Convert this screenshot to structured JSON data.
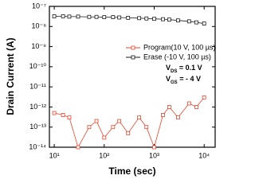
{
  "chart_data": {
    "type": "line",
    "xlabel": "Time (sec)",
    "ylabel": "Drain Current (A)",
    "xscale": "log",
    "yscale": "log",
    "xlim": [
      8,
      16600
    ],
    "ylim": [
      1e-14,
      1e-07
    ],
    "xticks": [
      {
        "value": 10,
        "label": "10¹"
      },
      {
        "value": 100,
        "label": "10²"
      },
      {
        "value": 1000,
        "label": "10³"
      },
      {
        "value": 10000,
        "label": "10⁴"
      }
    ],
    "yticks": [
      {
        "value": 1e-07,
        "label": "10⁻⁷"
      },
      {
        "value": 1e-08,
        "label": "10⁻⁸"
      },
      {
        "value": 1e-09,
        "label": "10⁻⁹"
      },
      {
        "value": 1e-10,
        "label": "10⁻¹⁰"
      },
      {
        "value": 1e-11,
        "label": "10⁻¹¹"
      },
      {
        "value": 1e-12,
        "label": "10⁻¹²"
      },
      {
        "value": 1e-13,
        "label": "10⁻¹³"
      },
      {
        "value": 1e-14,
        "label": "10⁻¹⁴"
      }
    ],
    "x": [
      10,
      15,
      20,
      30,
      50,
      70,
      100,
      150,
      200,
      300,
      500,
      700,
      1000,
      1500,
      2000,
      3000,
      5000,
      7000,
      10000
    ],
    "series": [
      {
        "name": "Program(10 V, 100 µs)",
        "color": "#e8442c",
        "values": [
          5e-13,
          4e-13,
          3e-13,
          1e-14,
          1e-13,
          2e-13,
          3e-14,
          1e-13,
          2e-13,
          5e-14,
          3e-13,
          1e-13,
          1e-14,
          4e-13,
          1e-12,
          3e-13,
          1.5e-12,
          1e-12,
          3e-12
        ]
      },
      {
        "name": "Erase    (-10 V, 100 µs)",
        "color": "#1a1a1a",
        "values": [
          3.2e-08,
          3.2e-08,
          3.1e-08,
          3.1e-08,
          3e-08,
          3e-08,
          2.9e-08,
          2.9e-08,
          2.8e-08,
          2.7e-08,
          2.6e-08,
          2.5e-08,
          2.4e-08,
          2.3e-08,
          2.2e-08,
          2e-08,
          1.8e-08,
          1.6e-08,
          1.4e-08
        ]
      }
    ],
    "legend": "upper right",
    "annotations": [
      {
        "main": "V",
        "sub": "DS",
        "rest": " = 0.1 V"
      },
      {
        "main": "V",
        "sub": "GS",
        "rest": " = - 4 V"
      }
    ]
  }
}
